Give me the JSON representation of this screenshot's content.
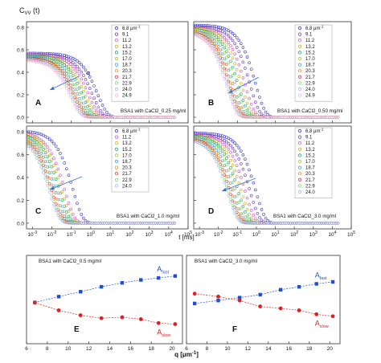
{
  "figure": {
    "top_ylabel": "C",
    "top_ylabel_sub": "VV",
    "top_ylabel_suffix": " (t)",
    "top_xlabel": "t [ms]",
    "bottom_xlabel": "q [μm",
    "bottom_xlabel_sup": "-1",
    "bottom_xlabel_suffix": "]"
  },
  "chart_data": [
    {
      "type": "scatter",
      "panel": "A",
      "annotation": "BSA1 with CaCl2_0.25 mg/ml",
      "arrow_label": "q",
      "x_scale": "log",
      "xlim": [
        0.0005,
        100000
      ],
      "ylim": [
        -0.05,
        0.85
      ],
      "yticks": [
        "0.0",
        "0.2",
        "0.4",
        "0.6",
        "0.8"
      ],
      "legend_unit": "μm",
      "legend_unit_sup": "-1",
      "series": [
        {
          "name": "6.8",
          "color": "#3a3acc",
          "plateau": 0.57,
          "tau": 2.2
        },
        {
          "name": "9.1",
          "color": "#6a3ab8",
          "plateau": 0.56,
          "tau": 1.2
        },
        {
          "name": "11.2",
          "color": "#d04fd0",
          "plateau": 0.56,
          "tau": 0.75
        },
        {
          "name": "13.2",
          "color": "#c8b400",
          "plateau": 0.55,
          "tau": 0.5
        },
        {
          "name": "15.2",
          "color": "#1f9d8a",
          "plateau": 0.55,
          "tau": 0.36
        },
        {
          "name": "17.0",
          "color": "#9acd32",
          "plateau": 0.54,
          "tau": 0.27
        },
        {
          "name": "18.7",
          "color": "#2fa0ff",
          "plateau": 0.54,
          "tau": 0.21
        },
        {
          "name": "20.3",
          "color": "#ff8c1a",
          "plateau": 0.53,
          "tau": 0.17
        },
        {
          "name": "21.7",
          "color": "#e03030",
          "plateau": 0.53,
          "tau": 0.14
        },
        {
          "name": "22.9",
          "color": "#78d878",
          "plateau": 0.52,
          "tau": 0.12
        },
        {
          "name": "24.0",
          "color": "#b0b0ff",
          "plateau": 0.52,
          "tau": 0.1
        },
        {
          "name": "24.9",
          "color": "#ffb0d0",
          "plateau": 0.51,
          "tau": 0.09
        }
      ]
    },
    {
      "type": "scatter",
      "panel": "B",
      "annotation": "BSA1 with CaCl2_0.50 mg/ml",
      "x_scale": "log",
      "xlim": [
        0.0005,
        100000
      ],
      "ylim": [
        -0.05,
        0.85
      ],
      "yticks": [
        "0.0",
        "0.2",
        "0.4",
        "0.6",
        "0.8"
      ],
      "legend_unit": "μm",
      "legend_unit_sup": "-1",
      "series": [
        {
          "name": "6.8",
          "color": "#3a3acc",
          "plateau": 0.82,
          "tau": 0.9
        },
        {
          "name": "9.1",
          "color": "#6a3ab8",
          "plateau": 0.81,
          "tau": 0.45
        },
        {
          "name": "11.2",
          "color": "#d04fd0",
          "plateau": 0.8,
          "tau": 0.25
        },
        {
          "name": "13.2",
          "color": "#c8b400",
          "plateau": 0.8,
          "tau": 0.16
        },
        {
          "name": "15.2",
          "color": "#1f9d8a",
          "plateau": 0.79,
          "tau": 0.11
        },
        {
          "name": "17.0",
          "color": "#9acd32",
          "plateau": 0.79,
          "tau": 0.08
        },
        {
          "name": "18.7",
          "color": "#2fa0ff",
          "plateau": 0.78,
          "tau": 0.06
        },
        {
          "name": "20.3",
          "color": "#ff8c1a",
          "plateau": 0.78,
          "tau": 0.048
        },
        {
          "name": "21.7",
          "color": "#e03030",
          "plateau": 0.77,
          "tau": 0.04
        },
        {
          "name": "22.9",
          "color": "#78d878",
          "plateau": 0.77,
          "tau": 0.034
        },
        {
          "name": "24.0",
          "color": "#b0b0ff",
          "plateau": 0.76,
          "tau": 0.03
        },
        {
          "name": "24.9",
          "color": "#ffb0d0",
          "plateau": 0.76,
          "tau": 0.027
        }
      ]
    },
    {
      "type": "scatter",
      "panel": "C",
      "annotation": "BSA1 with CaCl2_1.0 mg/ml",
      "x_scale": "log",
      "xlim": [
        0.0005,
        100000
      ],
      "ylim": [
        -0.05,
        0.85
      ],
      "yticks": [
        "0.0",
        "0.2",
        "0.4",
        "0.6",
        "0.8"
      ],
      "legend_unit": "μm",
      "legend_unit_sup": "-1",
      "series": [
        {
          "name": "6.8",
          "color": "#3a3acc",
          "plateau": 0.81,
          "tau": 0.12
        },
        {
          "name": "11.2",
          "color": "#d04fd0",
          "plateau": 0.8,
          "tau": 0.045
        },
        {
          "name": "13.2",
          "color": "#c8b400",
          "plateau": 0.8,
          "tau": 0.032
        },
        {
          "name": "15.2",
          "color": "#1f9d8a",
          "plateau": 0.79,
          "tau": 0.024
        },
        {
          "name": "17.0",
          "color": "#9acd32",
          "plateau": 0.79,
          "tau": 0.019
        },
        {
          "name": "18.7",
          "color": "#2fa0ff",
          "plateau": 0.78,
          "tau": 0.015
        },
        {
          "name": "20.3",
          "color": "#ff8c1a",
          "plateau": 0.78,
          "tau": 0.012
        },
        {
          "name": "21.7",
          "color": "#e03030",
          "plateau": 0.77,
          "tau": 0.01
        },
        {
          "name": "22.9",
          "color": "#78d878",
          "plateau": 0.77,
          "tau": 0.0085
        },
        {
          "name": "24.0",
          "color": "#b0b0ff",
          "plateau": 0.76,
          "tau": 0.0075
        }
      ]
    },
    {
      "type": "scatter",
      "panel": "D",
      "annotation": "BSA1 with CaCl2_3.0 mg/ml",
      "x_scale": "log",
      "xlim": [
        0.0005,
        100000
      ],
      "ylim": [
        -0.05,
        0.85
      ],
      "yticks": [
        "0.0",
        "0.2",
        "0.4",
        "0.6",
        "0.8"
      ],
      "legend_unit": "μm",
      "legend_unit_sup": "-1",
      "series": [
        {
          "name": "6.8",
          "color": "#3a3acc",
          "plateau": 0.79,
          "tau": 0.9
        },
        {
          "name": "9.1",
          "color": "#6a3ab8",
          "plateau": 0.78,
          "tau": 0.45
        },
        {
          "name": "11.2",
          "color": "#d04fd0",
          "plateau": 0.78,
          "tau": 0.25
        },
        {
          "name": "13.2",
          "color": "#c8b400",
          "plateau": 0.77,
          "tau": 0.16
        },
        {
          "name": "15.2",
          "color": "#1f9d8a",
          "plateau": 0.77,
          "tau": 0.11
        },
        {
          "name": "17.0",
          "color": "#9acd32",
          "plateau": 0.76,
          "tau": 0.08
        },
        {
          "name": "18.7",
          "color": "#2fa0ff",
          "plateau": 0.76,
          "tau": 0.06
        },
        {
          "name": "20.3",
          "color": "#ff8c1a",
          "plateau": 0.75,
          "tau": 0.048
        },
        {
          "name": "21.7",
          "color": "#e03030",
          "plateau": 0.75,
          "tau": 0.04
        },
        {
          "name": "22.9",
          "color": "#78d878",
          "plateau": 0.74,
          "tau": 0.034
        },
        {
          "name": "24.0",
          "color": "#b0b0ff",
          "plateau": 0.74,
          "tau": 0.03
        }
      ]
    },
    {
      "type": "line",
      "panel": "E",
      "annotation": "BSA1 with CaCl2_0.5 mg/ml",
      "xlim": [
        6,
        21
      ],
      "xticks": [
        6,
        8,
        10,
        12,
        14,
        16,
        18,
        20
      ],
      "ylim": [
        0,
        0.9
      ],
      "series": [
        {
          "name": "A",
          "name_sub": "fast",
          "color": "#1f4fd8",
          "marker": "square",
          "x": [
            6.8,
            9.1,
            11.2,
            13.2,
            15.2,
            17.0,
            18.7,
            20.3
          ],
          "y": [
            0.42,
            0.48,
            0.53,
            0.58,
            0.62,
            0.65,
            0.67,
            0.69
          ]
        },
        {
          "name": "A",
          "name_sub": "slow",
          "color": "#e02020",
          "marker": "circle",
          "x": [
            6.8,
            9.1,
            11.2,
            13.2,
            15.2,
            17.0,
            18.7,
            20.3
          ],
          "y": [
            0.42,
            0.34,
            0.29,
            0.26,
            0.27,
            0.25,
            0.21,
            0.2
          ]
        }
      ]
    },
    {
      "type": "line",
      "panel": "F",
      "annotation": "BSA1 with CaCl2_3.0 mg/ml",
      "xlim": [
        6,
        21
      ],
      "xticks": [
        6,
        8,
        10,
        12,
        14,
        16,
        18,
        20
      ],
      "ylim": [
        0,
        0.9
      ],
      "series": [
        {
          "name": "A",
          "name_sub": "fast",
          "color": "#1f4fd8",
          "marker": "square",
          "x": [
            6.8,
            9.1,
            11.2,
            13.2,
            15.2,
            17.0,
            18.7,
            20.3
          ],
          "y": [
            0.41,
            0.44,
            0.47,
            0.5,
            0.55,
            0.58,
            0.61,
            0.63
          ]
        },
        {
          "name": "A",
          "name_sub": "slow",
          "color": "#e02020",
          "marker": "circle",
          "x": [
            6.8,
            9.1,
            11.2,
            13.2,
            15.2,
            17.0,
            18.7,
            20.3
          ],
          "y": [
            0.51,
            0.48,
            0.44,
            0.38,
            0.36,
            0.34,
            0.3,
            0.28
          ]
        }
      ]
    }
  ]
}
